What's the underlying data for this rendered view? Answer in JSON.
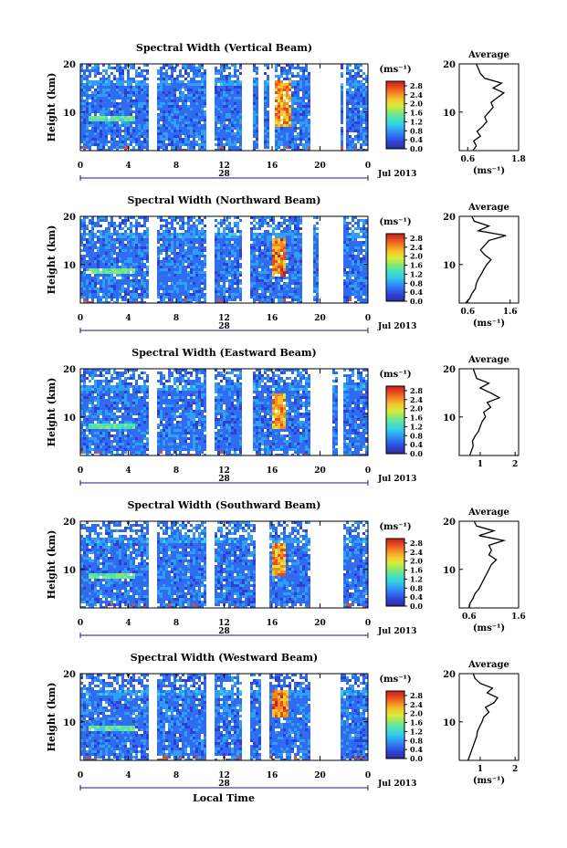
{
  "figure": {
    "xlabel": "Local Time",
    "date_label": "Jul 2013",
    "day_label": "28"
  },
  "colorbar": {
    "unit": "(ms⁻¹)",
    "ticks": [
      "0.0",
      "0.4",
      "0.8",
      "1.2",
      "1.6",
      "2.0",
      "2.4",
      "2.8"
    ],
    "colors": [
      "#2b2f8f",
      "#2f3fd6",
      "#2f6cf0",
      "#2fa0f5",
      "#35d0e6",
      "#4de3b5",
      "#8ee870",
      "#d8ec3a",
      "#f6c52e",
      "#f48a24",
      "#e84a1e",
      "#c71f1f"
    ]
  },
  "colors": {
    "background_noise": "#2a45d8",
    "avg_line": "#000000",
    "axis": "#000000",
    "time_axis_line": "#1a1a8a"
  },
  "chart_data": [
    {
      "type": "heatmap",
      "title": "Spectral Width (Vertical Beam)",
      "ylabel": "Height (km)",
      "xlim": [
        0,
        24
      ],
      "ylim": [
        2,
        20
      ],
      "xticks": [
        "0",
        "4",
        "8",
        "12",
        "16",
        "20",
        "0"
      ],
      "yticks": [
        "10",
        "20"
      ],
      "gaps_hours": [
        [
          5.5,
          6.2
        ],
        [
          10.5,
          11.0
        ],
        [
          13.3,
          14.2
        ],
        [
          14.8,
          15.3
        ],
        [
          15.7,
          16.1
        ],
        [
          19.0,
          21.5
        ],
        [
          21.8,
          22.1
        ]
      ],
      "features": [
        {
          "desc": "high width plume",
          "x": [
            16.2,
            17.4
          ],
          "y": [
            7,
            17
          ],
          "value": 2.6
        },
        {
          "desc": "enhanced layer",
          "x": [
            0.5,
            4.5
          ],
          "y": [
            8.5,
            9.5
          ],
          "value": 1.5
        }
      ],
      "average": {
        "title": "Average",
        "xlabel": "(ms⁻¹)",
        "xlim": [
          0.4,
          1.8
        ],
        "xticks": [
          "0.6",
          "1.8"
        ],
        "ylim": [
          2,
          20
        ],
        "yticks": [
          "10",
          "20"
        ],
        "profile_km": [
          2,
          3,
          4,
          5,
          6,
          7,
          8,
          9,
          10,
          11,
          12,
          13,
          14,
          15,
          16,
          17,
          18,
          19,
          20
        ],
        "profile_values": [
          0.72,
          0.8,
          0.74,
          0.9,
          0.82,
          0.95,
          1.05,
          1.0,
          1.1,
          1.2,
          1.15,
          1.3,
          1.45,
          1.2,
          1.4,
          1.0,
          0.9,
          0.85,
          0.8
        ]
      }
    },
    {
      "type": "heatmap",
      "title": "Spectral Width (Northward Beam)",
      "ylabel": "Height (km)",
      "xlim": [
        0,
        24
      ],
      "ylim": [
        2,
        20
      ],
      "xticks": [
        "0",
        "4",
        "8",
        "12",
        "16",
        "20",
        "0"
      ],
      "yticks": [
        "10",
        "20"
      ],
      "gaps_hours": [
        [
          5.5,
          6.2
        ],
        [
          10.5,
          11.0
        ],
        [
          13.3,
          14.0
        ],
        [
          18.5,
          19.4
        ],
        [
          19.8,
          21.8
        ]
      ],
      "features": [
        {
          "desc": "high width plume",
          "x": [
            15.8,
            17.0
          ],
          "y": [
            8,
            16
          ],
          "value": 2.7
        },
        {
          "desc": "enhanced layer",
          "x": [
            0.5,
            4.5
          ],
          "y": [
            8.5,
            9.5
          ],
          "value": 1.6
        }
      ],
      "average": {
        "title": "Average",
        "xlabel": "(ms⁻¹)",
        "xlim": [
          0.4,
          1.8
        ],
        "xticks": [
          "0.6",
          "1.6"
        ],
        "ylim": [
          2,
          20
        ],
        "yticks": [
          "10",
          "20"
        ],
        "profile_km": [
          2,
          3,
          4,
          5,
          6,
          7,
          8,
          9,
          10,
          11,
          12,
          13,
          14,
          15,
          16,
          17,
          18,
          19,
          20
        ],
        "profile_values": [
          0.55,
          0.65,
          0.7,
          0.78,
          0.8,
          0.85,
          0.92,
          0.98,
          1.05,
          1.15,
          1.0,
          0.9,
          1.0,
          1.1,
          1.5,
          0.85,
          1.1,
          0.75,
          0.7
        ]
      }
    },
    {
      "type": "heatmap",
      "title": "Spectral Width (Eastward Beam)",
      "ylabel": "Height (km)",
      "xlim": [
        0,
        24
      ],
      "ylim": [
        2,
        20
      ],
      "xticks": [
        "0",
        "4",
        "8",
        "12",
        "16",
        "20",
        "0"
      ],
      "yticks": [
        "10",
        "20"
      ],
      "gaps_hours": [
        [
          5.5,
          6.2
        ],
        [
          10.5,
          11.0
        ],
        [
          13.3,
          14.2
        ],
        [
          19.0,
          21.0
        ],
        [
          21.3,
          21.8
        ]
      ],
      "features": [
        {
          "desc": "high width plume",
          "x": [
            16.0,
            17.0
          ],
          "y": [
            8,
            15
          ],
          "value": 2.5
        },
        {
          "desc": "enhanced layer",
          "x": [
            0.5,
            4.5
          ],
          "y": [
            8.0,
            9.0
          ],
          "value": 1.6
        }
      ],
      "average": {
        "title": "Average",
        "xlabel": "",
        "xlim": [
          0.4,
          2.1
        ],
        "xticks": [
          "1",
          "2"
        ],
        "ylim": [
          2,
          20
        ],
        "yticks": [
          "10",
          "20"
        ],
        "profile_km": [
          2,
          3,
          4,
          5,
          6,
          7,
          8,
          9,
          10,
          11,
          12,
          13,
          14,
          15,
          16,
          17,
          18,
          19,
          20
        ],
        "profile_values": [
          0.7,
          0.75,
          0.8,
          0.78,
          0.85,
          0.95,
          1.0,
          1.05,
          1.15,
          1.1,
          1.3,
          1.2,
          1.55,
          1.3,
          1.0,
          1.25,
          0.9,
          0.85,
          0.8
        ]
      }
    },
    {
      "type": "heatmap",
      "title": "Spectral Width (Southward Beam)",
      "ylabel": "Height (km)",
      "xlim": [
        0,
        24
      ],
      "ylim": [
        2,
        20
      ],
      "xticks": [
        "0",
        "4",
        "8",
        "12",
        "16",
        "20",
        "0"
      ],
      "yticks": [
        "10",
        "20"
      ],
      "gaps_hours": [
        [
          5.5,
          6.2
        ],
        [
          10.5,
          11.0
        ],
        [
          14.6,
          15.6
        ],
        [
          19.0,
          21.8
        ]
      ],
      "features": [
        {
          "desc": "high width plume",
          "x": [
            15.8,
            17.0
          ],
          "y": [
            9,
            16
          ],
          "value": 2.6
        },
        {
          "desc": "enhanced layer",
          "x": [
            0.5,
            4.5
          ],
          "y": [
            8.5,
            9.5
          ],
          "value": 1.5
        }
      ],
      "average": {
        "title": "Average",
        "xlabel": "(ms⁻¹)",
        "xlim": [
          0.4,
          1.6
        ],
        "xticks": [
          "0.6",
          "1.6"
        ],
        "ylim": [
          2,
          20
        ],
        "yticks": [
          "10",
          "20"
        ],
        "profile_km": [
          2,
          3,
          4,
          5,
          6,
          7,
          8,
          9,
          10,
          11,
          12,
          13,
          14,
          15,
          16,
          17,
          18,
          19,
          20
        ],
        "profile_values": [
          0.6,
          0.62,
          0.68,
          0.72,
          0.8,
          0.85,
          0.9,
          0.95,
          1.0,
          1.05,
          1.15,
          1.0,
          1.05,
          1.0,
          1.3,
          0.8,
          1.1,
          0.75,
          0.7
        ]
      }
    },
    {
      "type": "heatmap",
      "title": "Spectral Width (Westward Beam)",
      "ylabel": "Height (km)",
      "xlim": [
        0,
        24
      ],
      "ylim": [
        2,
        20
      ],
      "xticks": [
        "0",
        "4",
        "8",
        "12",
        "16",
        "20",
        "0"
      ],
      "yticks": [
        "10",
        "20"
      ],
      "gaps_hours": [
        [
          5.5,
          6.2
        ],
        [
          10.5,
          11.0
        ],
        [
          13.3,
          14.0
        ],
        [
          15.0,
          15.7
        ],
        [
          19.0,
          21.5
        ]
      ],
      "features": [
        {
          "desc": "high width plume",
          "x": [
            15.8,
            17.3
          ],
          "y": [
            11,
            17
          ],
          "value": 2.7
        },
        {
          "desc": "enhanced layer",
          "x": [
            0.5,
            4.5
          ],
          "y": [
            8.5,
            9.5
          ],
          "value": 1.5
        }
      ],
      "average": {
        "title": "Average",
        "xlabel": "(ms⁻¹)",
        "xlim": [
          0.4,
          2.1
        ],
        "xticks": [
          "1",
          "2"
        ],
        "ylim": [
          2,
          20
        ],
        "yticks": [
          "10",
          "20"
        ],
        "profile_km": [
          2,
          3,
          4,
          5,
          6,
          7,
          8,
          9,
          10,
          11,
          12,
          13,
          14,
          15,
          16,
          17,
          18,
          19,
          20
        ],
        "profile_values": [
          0.65,
          0.7,
          0.75,
          0.8,
          0.85,
          0.9,
          0.92,
          0.98,
          1.05,
          1.1,
          1.25,
          1.15,
          1.4,
          1.5,
          1.2,
          1.35,
          1.0,
          0.85,
          0.8
        ]
      }
    }
  ]
}
